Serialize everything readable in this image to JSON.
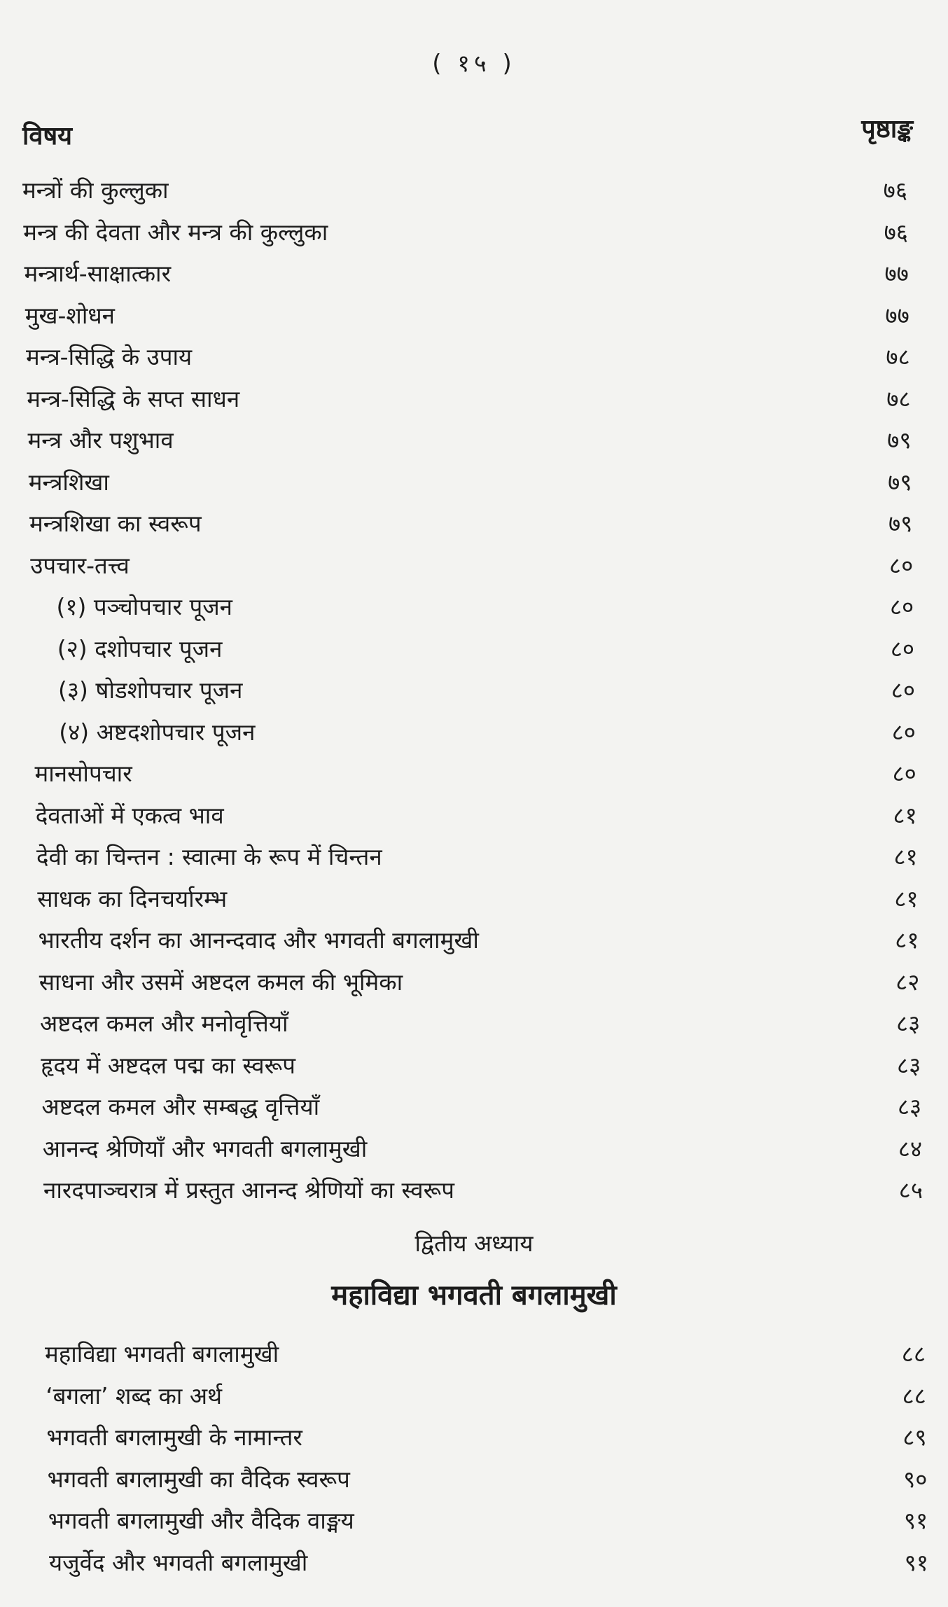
{
  "page_number": "( १५ )",
  "header": {
    "subject": "विषय",
    "page": "पृष्ठाङ्क"
  },
  "section1": [
    {
      "title": "मन्त्रों की कुल्लुका",
      "page": "७६",
      "indent": false
    },
    {
      "title": "मन्त्र की देवता और मन्त्र की कुल्लुका",
      "page": "७६",
      "indent": false
    },
    {
      "title": "मन्त्रार्थ-साक्षात्कार",
      "page": "७७",
      "indent": false
    },
    {
      "title": "मुख-शोधन",
      "page": "७७",
      "indent": false
    },
    {
      "title": "मन्त्र-सिद्धि के उपाय",
      "page": "७८",
      "indent": false
    },
    {
      "title": "मन्त्र-सिद्धि के सप्त साधन",
      "page": "७८",
      "indent": false
    },
    {
      "title": "मन्त्र और पशुभाव",
      "page": "७९",
      "indent": false
    },
    {
      "title": "मन्त्रशिखा",
      "page": "७९",
      "indent": false
    },
    {
      "title": "मन्त्रशिखा का स्वरूप",
      "page": "७९",
      "indent": false
    },
    {
      "title": "उपचार-तत्त्व",
      "page": "८०",
      "indent": false
    },
    {
      "title": "(१) पञ्चोपचार पूजन",
      "page": "८०",
      "indent": true
    },
    {
      "title": "(२) दशोपचार पूजन",
      "page": "८०",
      "indent": true
    },
    {
      "title": "(३) षोडशोपचार पूजन",
      "page": "८०",
      "indent": true
    },
    {
      "title": "(४) अष्टदशोपचार पूजन",
      "page": "८०",
      "indent": true
    },
    {
      "title": "मानसोपचार",
      "page": "८०",
      "indent": false
    },
    {
      "title": "देवताओं में एकत्व भाव",
      "page": "८१",
      "indent": false
    },
    {
      "title": "देवी का चिन्तन : स्वात्मा के रूप में चिन्तन",
      "page": "८१",
      "indent": false
    },
    {
      "title": "साधक का दिनचर्यारम्भ",
      "page": "८१",
      "indent": false
    },
    {
      "title": "भारतीय दर्शन का आनन्दवाद और भगवती बगलामुखी",
      "page": "८१",
      "indent": false
    },
    {
      "title": "साधना और उसमें अष्टदल कमल की भूमिका",
      "page": "८२",
      "indent": false
    },
    {
      "title": "अष्टदल कमल और मनोवृत्तियाँ",
      "page": "८३",
      "indent": false
    },
    {
      "title": "हृदय में अष्टदल पद्म का स्वरूप",
      "page": "८३",
      "indent": false
    },
    {
      "title": "अष्टदल कमल और सम्बद्ध वृत्तियाँ",
      "page": "८३",
      "indent": false
    },
    {
      "title": "आनन्द श्रेणियाँ और भगवती बगलामुखी",
      "page": "८४",
      "indent": false
    },
    {
      "title": "नारदपाञ्चरात्र में प्रस्तुत आनन्द श्रेणियों का स्वरूप",
      "page": "८५",
      "indent": false
    }
  ],
  "chapter": {
    "label": "द्वितीय अध्याय",
    "title": "महाविद्या भगवती बगलामुखी"
  },
  "section2": [
    {
      "title": "महाविद्या भगवती बगलामुखी",
      "page": "८८"
    },
    {
      "title": "‘बगला’ शब्द का अर्थ",
      "page": "८८"
    },
    {
      "title": "भगवती बगलामुखी के नामान्तर",
      "page": "८९"
    },
    {
      "title": "भगवती बगलामुखी का वैदिक स्वरूप",
      "page": "९०"
    },
    {
      "title": "भगवती बगलामुखी और वैदिक वाङ्मय",
      "page": "९१"
    },
    {
      "title": "यजुर्वेद और भगवती बगलामुखी",
      "page": "९१"
    }
  ]
}
